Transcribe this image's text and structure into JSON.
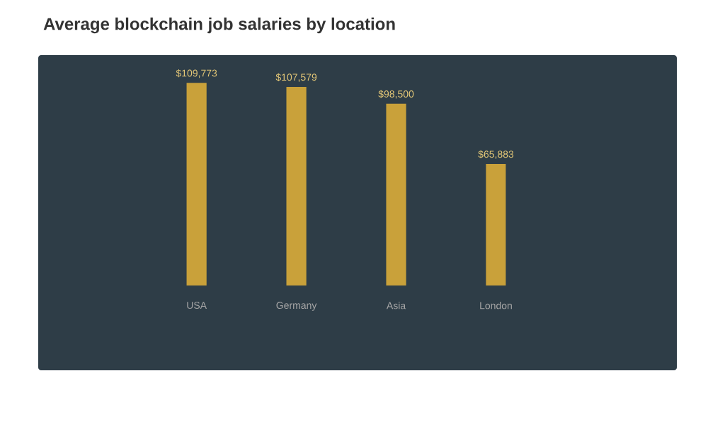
{
  "chart_data": {
    "type": "bar",
    "title": "Average blockchain job salaries by location",
    "categories": [
      "USA",
      "Germany",
      "Asia",
      "London"
    ],
    "values": [
      109773,
      107579,
      98500,
      65883
    ],
    "value_labels": [
      "$109,773",
      "$107,579",
      "$98,500",
      "$65,883"
    ],
    "color": "#c9a13a"
  }
}
